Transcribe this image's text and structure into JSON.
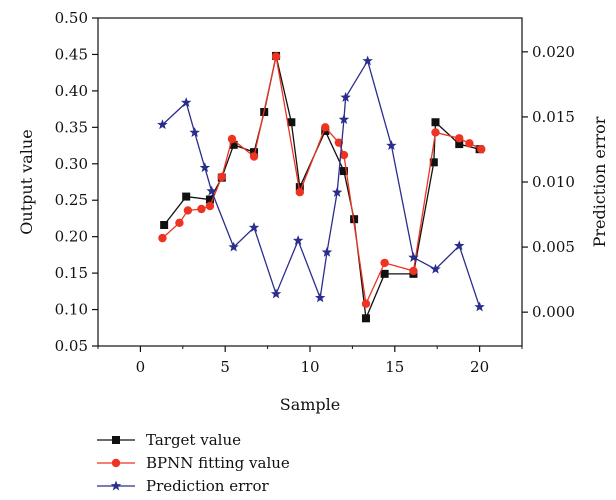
{
  "chart_data": {
    "type": "line",
    "xlabel": "Sample",
    "ylabel": "Output value",
    "y2label": "Prediction error",
    "xlim": [
      -2.5,
      22.5
    ],
    "ylim": [
      0.05,
      0.5
    ],
    "y2lim": [
      -0.0026,
      0.0226
    ],
    "xticks": [
      0,
      5,
      10,
      15,
      20
    ],
    "yticks": [
      0.05,
      0.1,
      0.15,
      0.2,
      0.25,
      0.3,
      0.35,
      0.4,
      0.45,
      0.5
    ],
    "y2ticks": [
      0.0,
      0.005,
      0.01,
      0.015,
      0.02
    ],
    "xtick_labels": [
      "0",
      "5",
      "10",
      "15",
      "20"
    ],
    "ytick_labels": [
      "0.05",
      "0.10",
      "0.15",
      "0.20",
      "0.25",
      "0.30",
      "0.35",
      "0.40",
      "0.45",
      "0.50"
    ],
    "y2tick_labels": [
      "0.000",
      "0.005",
      "0.010",
      "0.015",
      "0.020"
    ],
    "legend_placement": "below",
    "series": [
      {
        "name": "Target value",
        "color": "#111111",
        "marker": "square",
        "axis": "left",
        "points": [
          [
            1.4,
            0.216
          ],
          [
            2.7,
            0.255
          ],
          [
            4.1,
            0.251
          ],
          [
            4.8,
            0.281
          ],
          [
            5.5,
            0.326
          ],
          [
            6.7,
            0.316
          ],
          [
            7.3,
            0.371
          ],
          [
            8.0,
            0.448
          ],
          [
            8.9,
            0.357
          ],
          [
            9.4,
            0.268
          ],
          [
            10.9,
            0.345
          ],
          [
            12.0,
            0.29
          ],
          [
            12.6,
            0.224
          ],
          [
            13.3,
            0.088
          ],
          [
            14.4,
            0.149
          ],
          [
            16.1,
            0.149
          ],
          [
            17.3,
            0.302
          ],
          [
            17.4,
            0.357
          ],
          [
            18.8,
            0.327
          ],
          [
            20.0,
            0.32
          ]
        ]
      },
      {
        "name": "BPNN fitting value",
        "color": "#ee3322",
        "marker": "circle",
        "axis": "left",
        "points": [
          [
            1.3,
            0.198
          ],
          [
            2.3,
            0.219
          ],
          [
            2.8,
            0.236
          ],
          [
            3.6,
            0.238
          ],
          [
            4.1,
            0.242
          ],
          [
            4.8,
            0.282
          ],
          [
            5.4,
            0.334
          ],
          [
            6.7,
            0.31
          ],
          [
            8.0,
            0.447
          ],
          [
            9.4,
            0.261
          ],
          [
            10.9,
            0.35
          ],
          [
            11.7,
            0.329
          ],
          [
            12.0,
            0.312
          ],
          [
            13.3,
            0.108
          ],
          [
            14.4,
            0.164
          ],
          [
            16.1,
            0.153
          ],
          [
            17.4,
            0.343
          ],
          [
            18.8,
            0.335
          ],
          [
            19.4,
            0.328
          ],
          [
            20.1,
            0.32
          ]
        ]
      },
      {
        "name": "Prediction error",
        "color": "#2b2d8c",
        "marker": "star",
        "axis": "right",
        "points": [
          [
            1.3,
            0.0144
          ],
          [
            2.7,
            0.0161
          ],
          [
            3.2,
            0.0138
          ],
          [
            3.8,
            0.0111
          ],
          [
            4.2,
            0.0093
          ],
          [
            5.5,
            0.005
          ],
          [
            6.7,
            0.0065
          ],
          [
            8.0,
            0.0014
          ],
          [
            9.3,
            0.0055
          ],
          [
            10.6,
            0.0011
          ],
          [
            11.0,
            0.0046
          ],
          [
            11.6,
            0.0092
          ],
          [
            12.0,
            0.0148
          ],
          [
            12.1,
            0.0165
          ],
          [
            13.4,
            0.0193
          ],
          [
            14.8,
            0.0128
          ],
          [
            16.1,
            0.0042
          ],
          [
            17.4,
            0.0033
          ],
          [
            18.8,
            0.0051
          ],
          [
            20.0,
            0.0004
          ]
        ]
      }
    ]
  }
}
